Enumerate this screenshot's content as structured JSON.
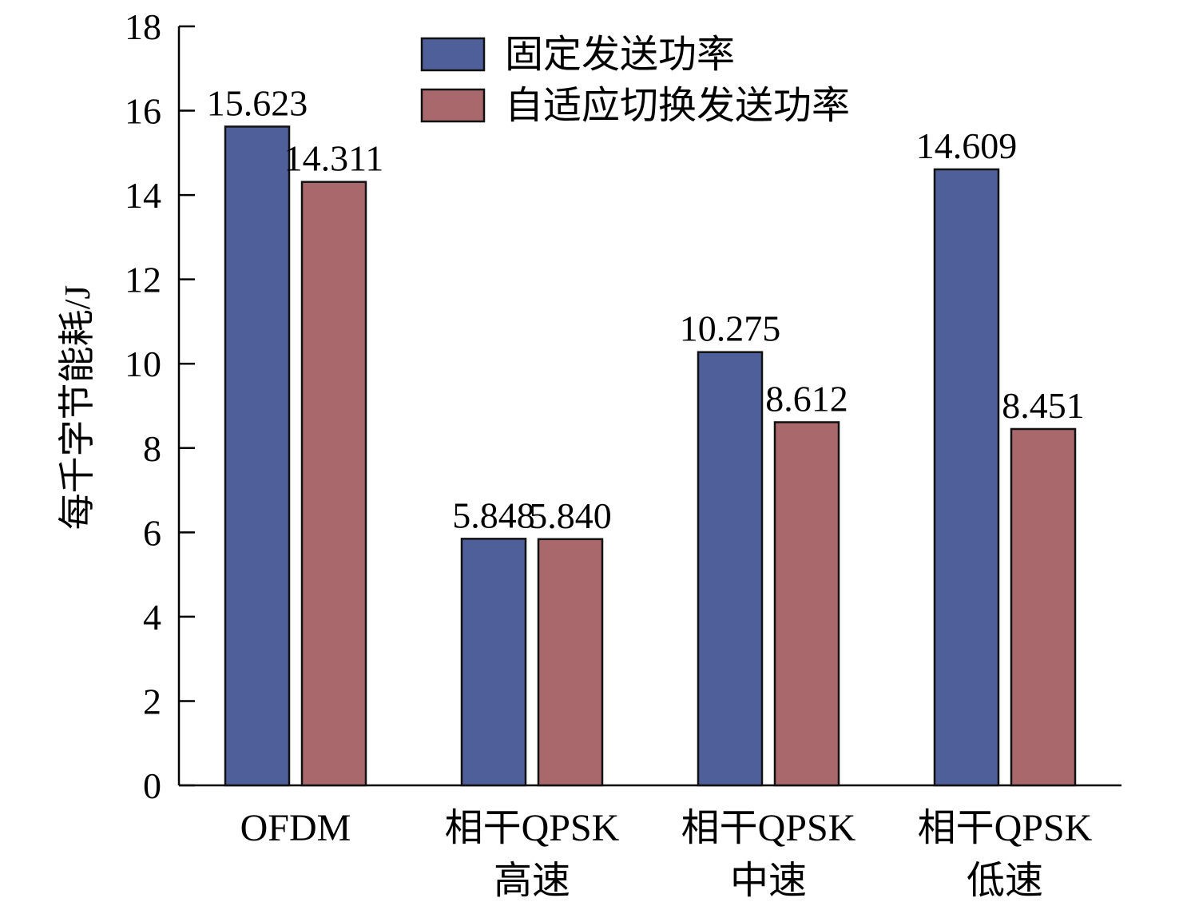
{
  "chart_data": {
    "type": "bar",
    "categories": [
      [
        "OFDM"
      ],
      [
        "相干QPSK",
        "高速"
      ],
      [
        "相干QPSK",
        "中速"
      ],
      [
        "相干QPSK",
        "低速"
      ]
    ],
    "series": [
      {
        "name": "固定发送功率",
        "color": "#4f5f9a",
        "values": [
          15.623,
          5.848,
          10.275,
          14.609
        ],
        "labels": [
          "15.623",
          "5.848",
          "10.275",
          "14.609"
        ]
      },
      {
        "name": "自适应切换发送功率",
        "color": "#a9686b",
        "values": [
          14.311,
          5.84,
          8.612,
          8.451
        ],
        "labels": [
          "14.311",
          "5.840",
          "8.612",
          "8.451"
        ]
      }
    ],
    "title": "",
    "xlabel": "",
    "ylabel": "每千字节能耗/J",
    "ylim": [
      0,
      18
    ],
    "yticks": [
      0,
      2,
      4,
      6,
      8,
      10,
      12,
      14,
      16,
      18
    ],
    "grid": false,
    "legend_position": "top-center"
  }
}
